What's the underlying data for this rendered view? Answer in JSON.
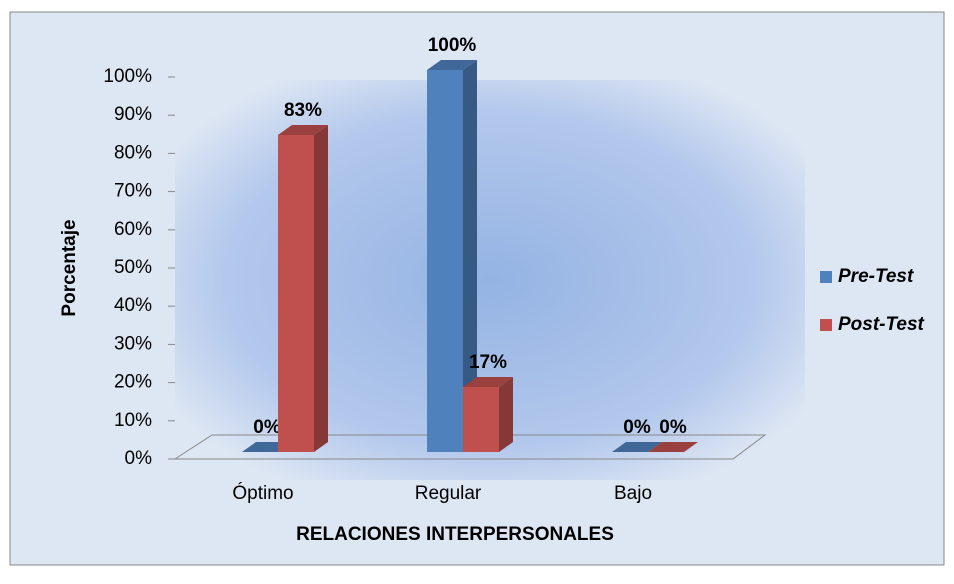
{
  "chart_data": {
    "type": "bar3d",
    "x_label": "RELACIONES INTERPERSONALES",
    "y_label": "Porcentaje",
    "categories": [
      "Óptimo",
      "Regular",
      "Bajo"
    ],
    "series": [
      {
        "name": "Pre-Test",
        "color": "#4f81bd",
        "values": [
          0,
          100,
          0
        ],
        "value_labels": [
          "0%",
          "100%",
          "0%"
        ]
      },
      {
        "name": "Post-Test",
        "color": "#c0504d",
        "values": [
          83,
          17,
          0
        ],
        "value_labels": [
          "83%",
          "17%",
          "0%"
        ]
      }
    ],
    "ylim": [
      0,
      100
    ],
    "yticks": [
      {
        "value": 0,
        "label": "0%"
      },
      {
        "value": 10,
        "label": "10%"
      },
      {
        "value": 20,
        "label": "20%"
      },
      {
        "value": 30,
        "label": "30%"
      },
      {
        "value": 40,
        "label": "40%"
      },
      {
        "value": 50,
        "label": "50%"
      },
      {
        "value": 60,
        "label": "60%"
      },
      {
        "value": 70,
        "label": "70%"
      },
      {
        "value": 80,
        "label": "80%"
      },
      {
        "value": 90,
        "label": "90%"
      },
      {
        "value": 100,
        "label": "100%"
      }
    ],
    "legend": "right"
  }
}
